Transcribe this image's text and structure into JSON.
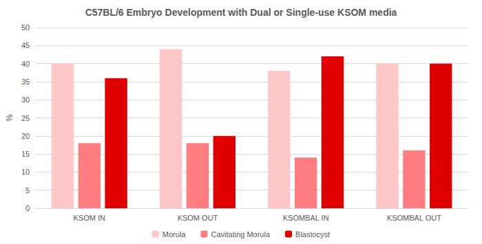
{
  "chart_data": {
    "type": "bar",
    "title": "C57BL/6 Embryo Development with Dual or Single-use KSOM media",
    "y_label": "%",
    "categories": [
      "KSOM IN",
      "KSOM OUT",
      "KSOMBAL IN",
      "KSOMBAL OUT"
    ],
    "series": [
      {
        "name": "Morula",
        "color": "#ffc7c7",
        "values": [
          40,
          44,
          38,
          40
        ]
      },
      {
        "name": "Cavitating Morula",
        "color": "#ff7c80",
        "values": [
          18,
          18,
          14,
          16
        ]
      },
      {
        "name": "Blastocyst",
        "color": "#e00000",
        "values": [
          36,
          20,
          42,
          40
        ]
      }
    ],
    "ylim": [
      0,
      50
    ],
    "yticks": [
      0,
      5,
      10,
      15,
      20,
      25,
      30,
      35,
      40,
      45,
      50
    ],
    "grid": true,
    "legend": "bottom"
  }
}
